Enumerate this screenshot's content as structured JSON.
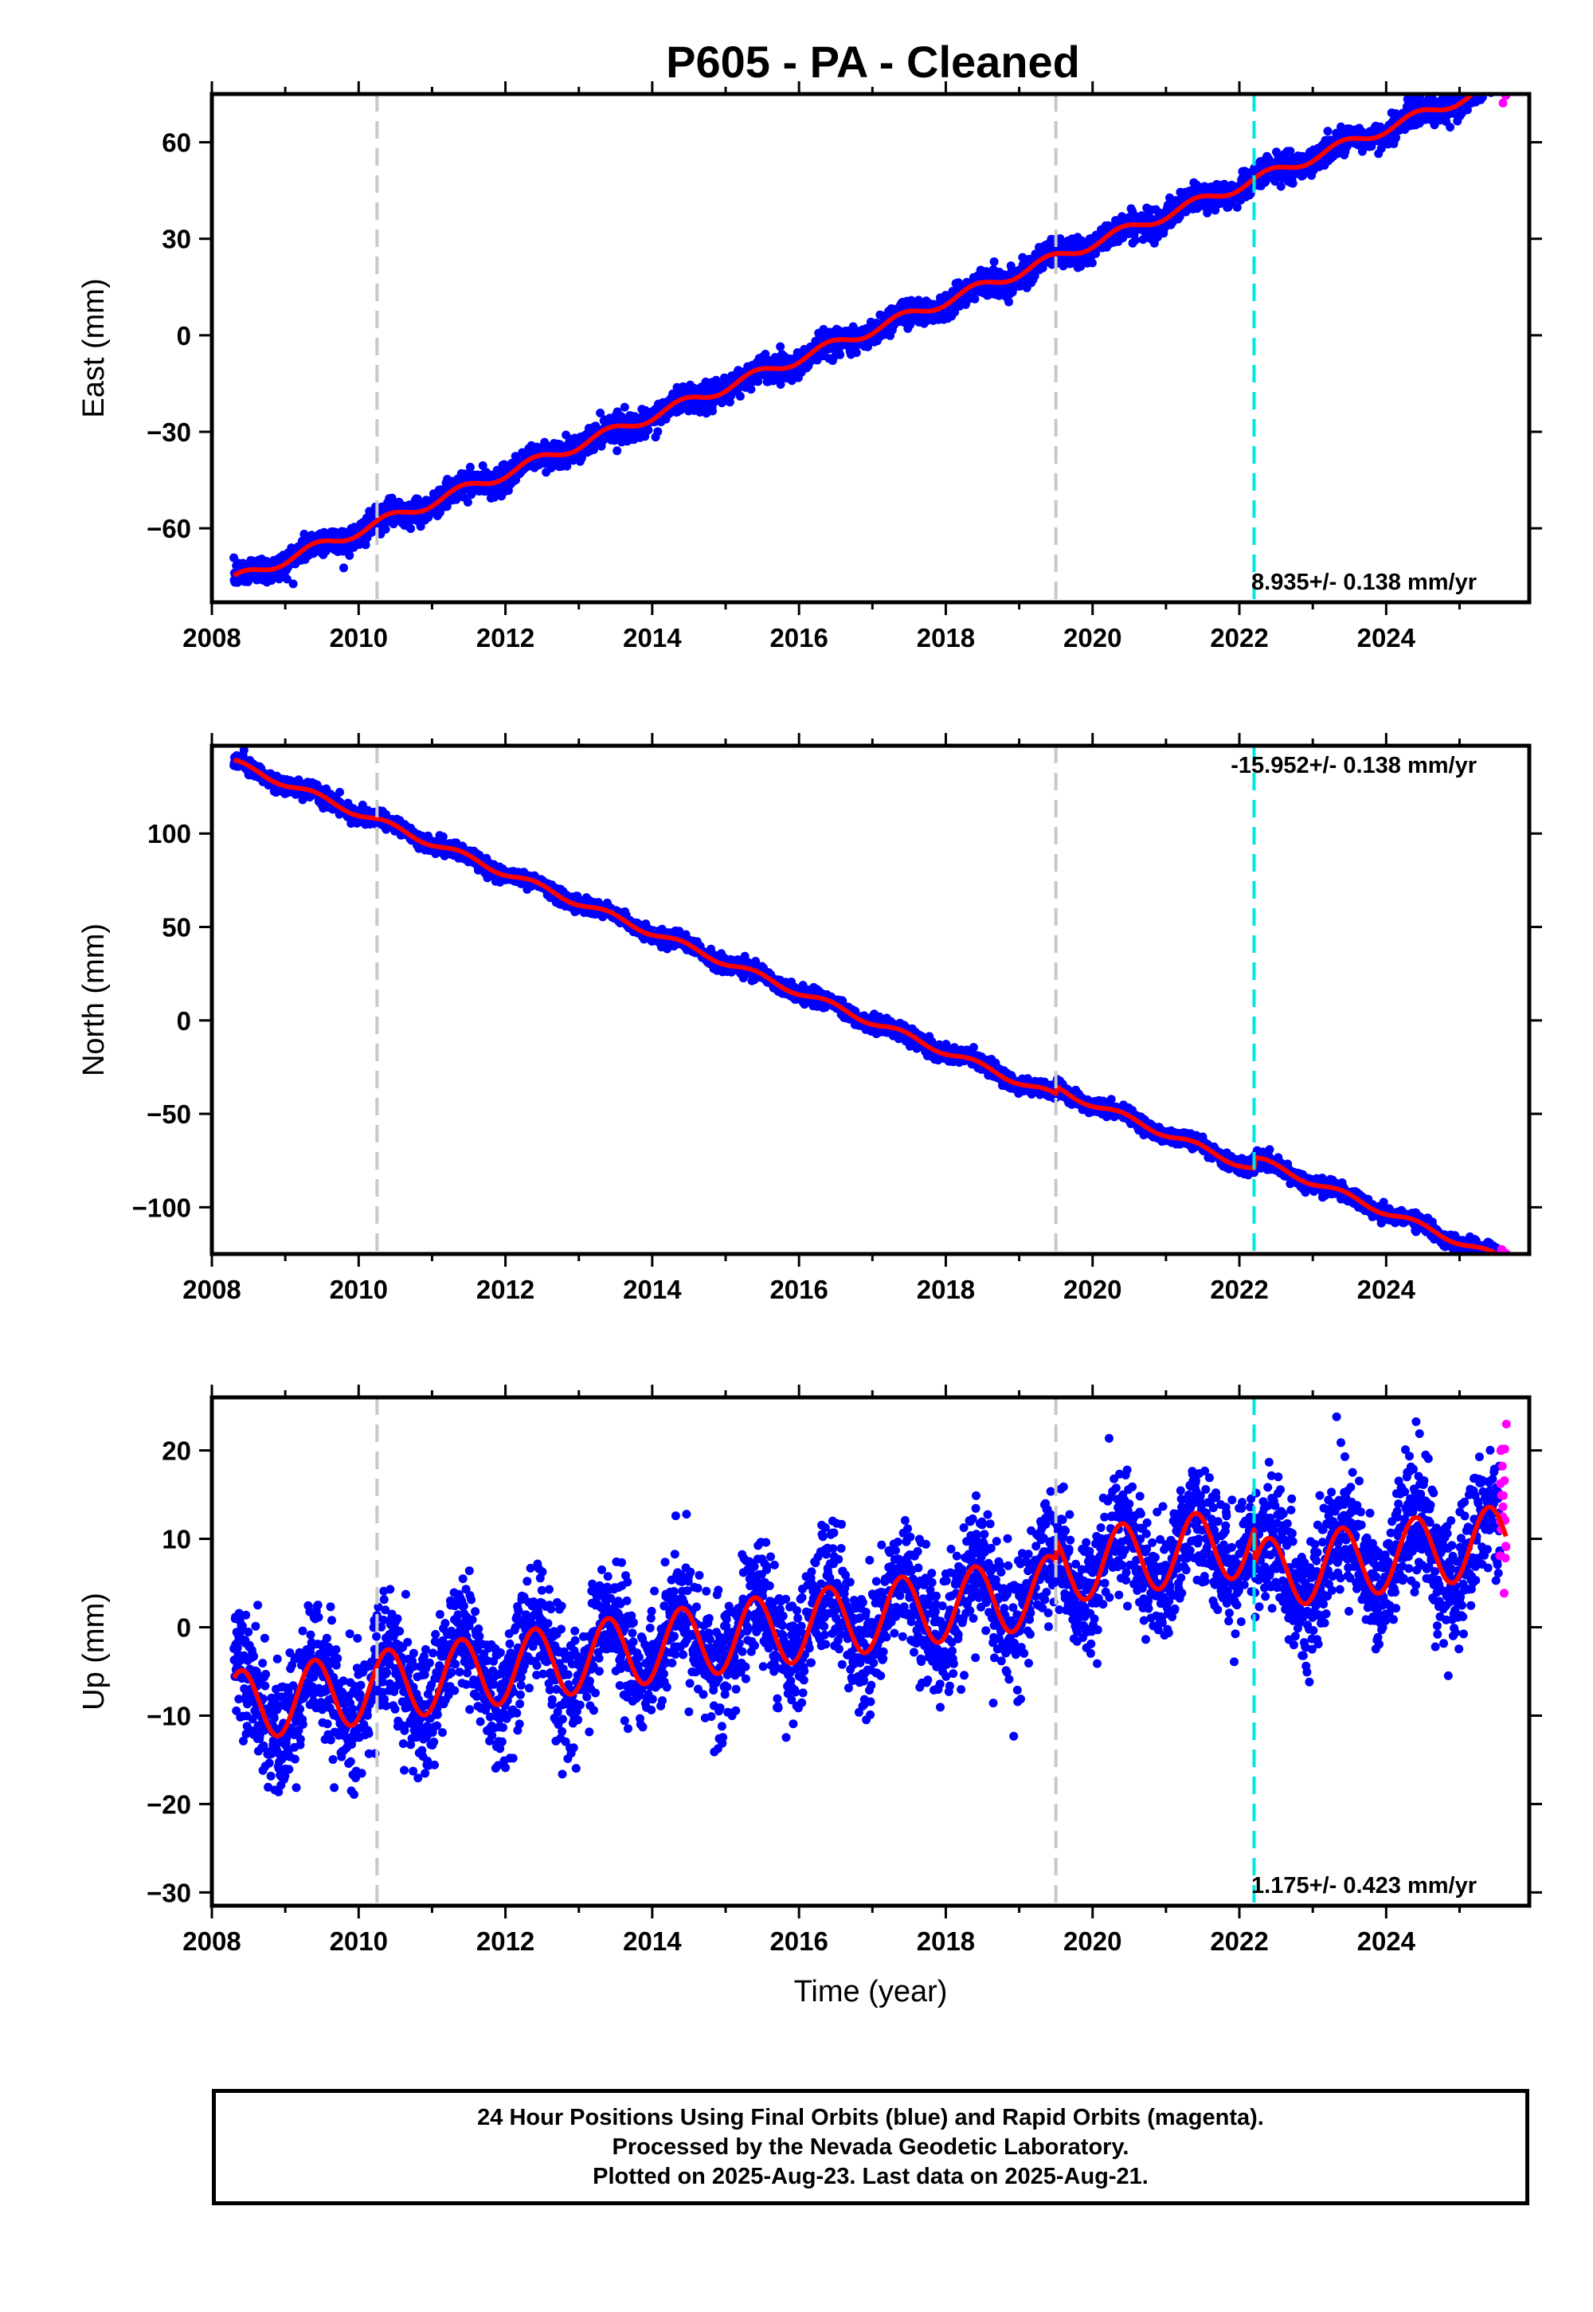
{
  "title": "P605  - PA - Cleaned",
  "colors": {
    "final_orbits": "#0000ff",
    "rapid_orbits": "#ff00ff",
    "model": "#ff0000",
    "equipment_change": "#c8c8c8",
    "earthquake": "#00e5e5"
  },
  "chart_data": [
    {
      "type": "scatter",
      "name": "east",
      "ylabel": "East (mm)",
      "xlabel": "",
      "xlim": [
        2008.0,
        2025.95
      ],
      "ylim": [
        -83,
        75
      ],
      "xticks": [
        2008,
        2010,
        2012,
        2014,
        2016,
        2018,
        2020,
        2022,
        2024
      ],
      "yticks": [
        -60,
        -30,
        0,
        30,
        60
      ],
      "rate_label": "8.935+/- 0.138 mm/yr",
      "rate_position": "bottom-right",
      "start": -76.0,
      "rate_mm_yr": 8.935,
      "seasonal_amplitude": 1.6,
      "scatter_noise": 2.0,
      "steps": [],
      "final_orbit_end": 2025.55,
      "rapid_orbit_end": 2025.64,
      "gray_lines": [
        2010.25,
        2019.5
      ],
      "cyan_lines": [
        2022.2
      ]
    },
    {
      "type": "scatter",
      "name": "north",
      "ylabel": "North (mm)",
      "xlabel": "",
      "xlim": [
        2008.0,
        2025.95
      ],
      "ylim": [
        -125,
        147
      ],
      "xticks": [
        2008,
        2010,
        2012,
        2014,
        2016,
        2018,
        2020,
        2022,
        2024
      ],
      "yticks": [
        -100,
        -50,
        0,
        50,
        100
      ],
      "rate_label": "-15.952+/- 0.138 mm/yr",
      "rate_position": "top-right",
      "start": 138.0,
      "rate_mm_yr": -15.952,
      "seasonal_amplitude": 1.8,
      "scatter_noise": 2.0,
      "steps": [
        [
          2019.5,
          4.0
        ],
        [
          2022.2,
          6.0
        ]
      ],
      "final_orbit_end": 2025.55,
      "rapid_orbit_end": 2025.64,
      "gray_lines": [
        2010.25,
        2019.5
      ],
      "cyan_lines": [
        2022.2
      ]
    },
    {
      "type": "scatter",
      "name": "up",
      "ylabel": "Up (mm)",
      "xlabel": "Time (year)",
      "xlim": [
        2008.0,
        2025.95
      ],
      "ylim": [
        -31.5,
        26
      ],
      "xticks": [
        2008,
        2010,
        2012,
        2014,
        2016,
        2018,
        2020,
        2022,
        2024
      ],
      "yticks": [
        -30,
        -20,
        -10,
        0,
        10,
        20
      ],
      "rate_label": "1.175+/- 0.423 mm/yr",
      "rate_position": "bottom-right",
      "start": -9.0,
      "rate_mm_yr": 1.175,
      "seasonal_amplitude": 4.0,
      "scatter_noise": 3.5,
      "steps": [
        [
          2019.5,
          2.5
        ],
        [
          2022.2,
          -4.0
        ]
      ],
      "final_orbit_end": 2025.55,
      "rapid_orbit_end": 2025.64,
      "gray_lines": [
        2010.25,
        2019.5
      ],
      "cyan_lines": [
        2022.2
      ]
    }
  ],
  "footer": {
    "line1": "24 Hour Positions Using Final Orbits (blue) and Rapid Orbits (magenta).",
    "line2": "Processed by the Nevada Geodetic Laboratory.",
    "line3": "Plotted on 2025-Aug-23. Last data on 2025-Aug-21."
  }
}
